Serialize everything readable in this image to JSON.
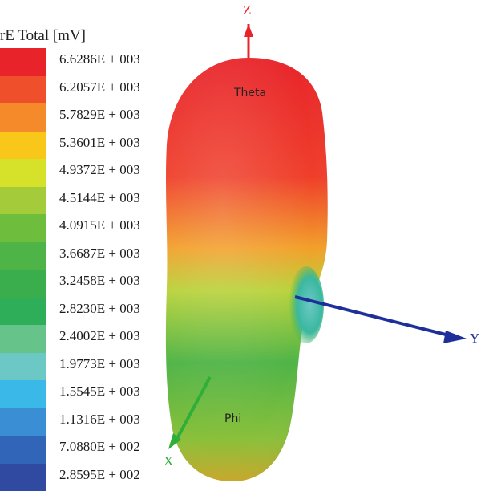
{
  "legend": {
    "title": "rE Total [mV]",
    "levels": [
      {
        "label": "6.6286E + 003",
        "color": "#e8242a"
      },
      {
        "label": "6.2057E + 003",
        "color": "#ef4f2a"
      },
      {
        "label": "5.7829E + 003",
        "color": "#f58a2a"
      },
      {
        "label": "5.3601E + 003",
        "color": "#f9c61a"
      },
      {
        "label": "4.9372E + 003",
        "color": "#d6e22a"
      },
      {
        "label": "4.5144E + 003",
        "color": "#a4cc3a"
      },
      {
        "label": "4.0915E + 003",
        "color": "#6ebd3c"
      },
      {
        "label": "3.6687E + 003",
        "color": "#4fb447"
      },
      {
        "label": "3.2458E + 003",
        "color": "#3aae4d"
      },
      {
        "label": "2.8230E + 003",
        "color": "#2fae5a"
      },
      {
        "label": "2.4002E + 003",
        "color": "#66c38a"
      },
      {
        "label": "1.9773E + 003",
        "color": "#6cc8c4"
      },
      {
        "label": "1.5545E + 003",
        "color": "#3ab8e8"
      },
      {
        "label": "1.1316E + 003",
        "color": "#3a8fd4"
      },
      {
        "label": "7.0880E + 002",
        "color": "#3165b8"
      },
      {
        "label": "2.8595E + 002",
        "color": "#2f4aa0"
      }
    ]
  },
  "axes": {
    "z_label": "Z",
    "y_label": "Y",
    "x_label": "X",
    "z_color": "#e8242a",
    "y_color": "#1f2f9a",
    "x_color": "#2fae3a"
  },
  "annotations": {
    "top": "Theta",
    "bottom": "Phi"
  }
}
